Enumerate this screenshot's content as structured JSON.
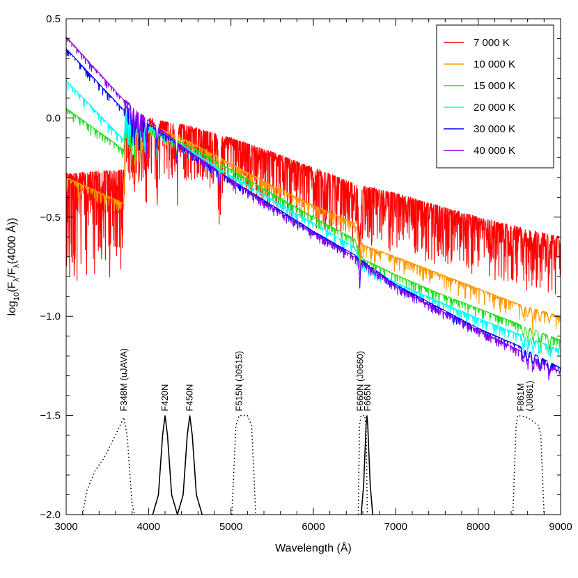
{
  "chart_data": {
    "type": "line",
    "xlabel": "Wavelength (Å)",
    "ylabel": "log10(Fλ/Fλ(4000 Å))",
    "ylabel_parts": {
      "pre": "log",
      "sub1": "10",
      "mid": "(F",
      "sub2": "λ",
      "mid2": "/F",
      "sub3": "λ",
      "post": "(4000 Å))"
    },
    "xlim": [
      3000,
      9000
    ],
    "ylim": [
      -2.0,
      0.5
    ],
    "x_ticks": [
      3000,
      4000,
      5000,
      6000,
      7000,
      8000,
      9000
    ],
    "x_tick_labels": [
      "3000",
      "4000",
      "5000",
      "6000",
      "7000",
      "8000",
      "9000"
    ],
    "y_ticks": [
      -2.0,
      -1.5,
      -1.0,
      -0.5,
      0.0,
      0.5
    ],
    "y_tick_labels": [
      "−2.0",
      "−1.5",
      "−1.0",
      "−0.5",
      "0.0",
      "0.5"
    ],
    "grid": false,
    "legend_position": "top-right",
    "series": [
      {
        "name": "7 000 K",
        "color": "#ff0000",
        "continuum": [
          [
            3000,
            -0.28
          ],
          [
            3700,
            -0.26
          ],
          [
            3720,
            -0.02
          ],
          [
            4000,
            0.0
          ],
          [
            4500,
            -0.04
          ],
          [
            5000,
            -0.1
          ],
          [
            5500,
            -0.17
          ],
          [
            6000,
            -0.25
          ],
          [
            6500,
            -0.33
          ],
          [
            7000,
            -0.38
          ],
          [
            7500,
            -0.44
          ],
          [
            8000,
            -0.5
          ],
          [
            8500,
            -0.55
          ],
          [
            9000,
            -0.6
          ]
        ],
        "noise_depth": 0.3
      },
      {
        "name": "10 000 K",
        "color": "#ff9900",
        "continuum": [
          [
            3000,
            -0.3
          ],
          [
            3700,
            -0.43
          ],
          [
            3720,
            -0.05
          ],
          [
            4000,
            -0.03
          ],
          [
            4500,
            -0.12
          ],
          [
            5000,
            -0.23
          ],
          [
            5500,
            -0.34
          ],
          [
            6000,
            -0.44
          ],
          [
            6500,
            -0.53
          ],
          [
            6600,
            -0.64
          ],
          [
            7000,
            -0.7
          ],
          [
            7500,
            -0.78
          ],
          [
            8000,
            -0.86
          ],
          [
            8500,
            -0.94
          ],
          [
            9000,
            -1.0
          ]
        ],
        "noise_depth": 0.08
      },
      {
        "name": "15 000 K",
        "color": "#22dd22",
        "continuum": [
          [
            3000,
            0.05
          ],
          [
            3700,
            -0.16
          ],
          [
            3720,
            -0.02
          ],
          [
            4000,
            -0.05
          ],
          [
            4500,
            -0.14
          ],
          [
            5000,
            -0.26
          ],
          [
            5500,
            -0.38
          ],
          [
            6000,
            -0.5
          ],
          [
            6500,
            -0.61
          ],
          [
            6600,
            -0.71
          ],
          [
            7000,
            -0.79
          ],
          [
            7500,
            -0.88
          ],
          [
            8000,
            -0.96
          ],
          [
            8500,
            -1.04
          ],
          [
            9000,
            -1.12
          ]
        ],
        "noise_depth": 0.05
      },
      {
        "name": "20 000 K",
        "color": "#00ffff",
        "continuum": [
          [
            3000,
            0.19
          ],
          [
            3700,
            -0.11
          ],
          [
            3720,
            0.02
          ],
          [
            4000,
            -0.04
          ],
          [
            4500,
            -0.16
          ],
          [
            5000,
            -0.29
          ],
          [
            5500,
            -0.41
          ],
          [
            6000,
            -0.53
          ],
          [
            6500,
            -0.65
          ],
          [
            6600,
            -0.74
          ],
          [
            7000,
            -0.83
          ],
          [
            7500,
            -0.92
          ],
          [
            8000,
            -1.01
          ],
          [
            8500,
            -1.09
          ],
          [
            9000,
            -1.17
          ]
        ],
        "noise_depth": 0.05
      },
      {
        "name": "30 000 K",
        "color": "#0000ff",
        "continuum": [
          [
            3000,
            0.35
          ],
          [
            3700,
            0.04
          ],
          [
            3720,
            0.06
          ],
          [
            4000,
            -0.03
          ],
          [
            4500,
            -0.17
          ],
          [
            5000,
            -0.31
          ],
          [
            5500,
            -0.44
          ],
          [
            6000,
            -0.57
          ],
          [
            6500,
            -0.69
          ],
          [
            7000,
            -0.84
          ],
          [
            7500,
            -0.95
          ],
          [
            8000,
            -1.06
          ],
          [
            8500,
            -1.15
          ],
          [
            9000,
            -1.26
          ]
        ],
        "noise_depth": 0.04
      },
      {
        "name": "40 000 K",
        "color": "#8800ee",
        "continuum": [
          [
            3000,
            0.41
          ],
          [
            3700,
            0.09
          ],
          [
            3720,
            0.09
          ],
          [
            4000,
            -0.01
          ],
          [
            4500,
            -0.17
          ],
          [
            5000,
            -0.31
          ],
          [
            5500,
            -0.45
          ],
          [
            6000,
            -0.58
          ],
          [
            6500,
            -0.7
          ],
          [
            7000,
            -0.85
          ],
          [
            7500,
            -0.96
          ],
          [
            8000,
            -1.07
          ],
          [
            8500,
            -1.17
          ],
          [
            9000,
            -1.28
          ]
        ],
        "noise_depth": 0.04
      }
    ],
    "filters": [
      {
        "name": "F348M (uJAVA)",
        "style": "dotted",
        "points": [
          [
            3200,
            -2.0
          ],
          [
            3250,
            -1.88
          ],
          [
            3350,
            -1.78
          ],
          [
            3450,
            -1.72
          ],
          [
            3550,
            -1.64
          ],
          [
            3620,
            -1.58
          ],
          [
            3700,
            -1.51
          ],
          [
            3740,
            -1.6
          ],
          [
            3800,
            -1.95
          ],
          [
            3830,
            -2.0
          ]
        ]
      },
      {
        "name": "F420N",
        "style": "solid",
        "points": [
          [
            4050,
            -2.0
          ],
          [
            4120,
            -1.9
          ],
          [
            4170,
            -1.6
          ],
          [
            4200,
            -1.5
          ],
          [
            4230,
            -1.6
          ],
          [
            4280,
            -1.9
          ],
          [
            4350,
            -2.0
          ]
        ]
      },
      {
        "name": "F450N",
        "style": "solid",
        "points": [
          [
            4350,
            -2.0
          ],
          [
            4420,
            -1.9
          ],
          [
            4470,
            -1.6
          ],
          [
            4500,
            -1.5
          ],
          [
            4530,
            -1.6
          ],
          [
            4580,
            -1.9
          ],
          [
            4650,
            -2.0
          ]
        ]
      },
      {
        "name": "F515N (J0515)",
        "style": "dotted",
        "points": [
          [
            5010,
            -2.0
          ],
          [
            5060,
            -1.55
          ],
          [
            5100,
            -1.5
          ],
          [
            5200,
            -1.5
          ],
          [
            5250,
            -1.55
          ],
          [
            5300,
            -2.0
          ]
        ]
      },
      {
        "name": "F660N (J0660)",
        "style": "dotted",
        "points": [
          [
            6545,
            -2.0
          ],
          [
            6560,
            -1.55
          ],
          [
            6580,
            -1.5
          ],
          [
            6620,
            -1.5
          ],
          [
            6640,
            -1.55
          ],
          [
            6655,
            -2.0
          ]
        ]
      },
      {
        "name": "F665N",
        "style": "solid",
        "points": [
          [
            6580,
            -2.0
          ],
          [
            6610,
            -1.85
          ],
          [
            6640,
            -1.55
          ],
          [
            6650,
            -1.5
          ],
          [
            6660,
            -1.55
          ],
          [
            6690,
            -1.85
          ],
          [
            6720,
            -2.0
          ]
        ]
      },
      {
        "name": "F861M (J0861)",
        "style": "dotted",
        "points": [
          [
            8420,
            -2.0
          ],
          [
            8460,
            -1.55
          ],
          [
            8480,
            -1.5
          ],
          [
            8600,
            -1.51
          ],
          [
            8730,
            -1.55
          ],
          [
            8760,
            -1.6
          ],
          [
            8800,
            -2.0
          ]
        ]
      }
    ]
  }
}
